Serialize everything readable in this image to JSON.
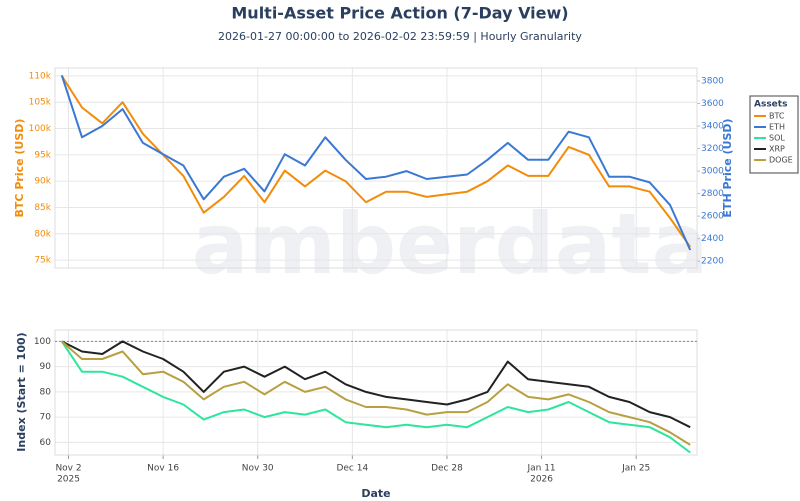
{
  "chart_data": [
    {
      "type": "line",
      "title": "Multi-Asset Price Action (7-Day View)",
      "subtitle": "2026-01-27 00:00:00 to 2026-02-02 23:59:59 | Hourly Granularity",
      "watermark": "amberdata",
      "y_label": "BTC Price (USD)",
      "y2_label": "ETH Price (USD)",
      "legend": "right",
      "legend_title": "Assets",
      "grid": true,
      "xlim": [
        "2025-10-31",
        "2026-02-03"
      ],
      "xticks": [
        "2025-11-02",
        "2025-11-16",
        "2025-11-30",
        "2025-12-14",
        "2025-12-28",
        "2026-01-11",
        "2026-01-25"
      ],
      "ylim": [
        73500,
        111500
      ],
      "yticks": [
        {
          "value": 75000,
          "label": "75k"
        },
        {
          "value": 80000,
          "label": "80k"
        },
        {
          "value": 85000,
          "label": "85k"
        },
        {
          "value": 90000,
          "label": "90k"
        },
        {
          "value": 95000,
          "label": "95k"
        },
        {
          "value": 100000,
          "label": "100k"
        },
        {
          "value": 105000,
          "label": "105k"
        },
        {
          "value": 110000,
          "label": "110k"
        }
      ],
      "y2lim": [
        2140,
        3915
      ],
      "y2ticks": [
        2200,
        2400,
        2600,
        2800,
        3000,
        3200,
        3400,
        3600,
        3800
      ],
      "x": [
        "2025-11-01",
        "2025-11-04",
        "2025-11-07",
        "2025-11-10",
        "2025-11-13",
        "2025-11-16",
        "2025-11-19",
        "2025-11-22",
        "2025-11-25",
        "2025-11-28",
        "2025-12-01",
        "2025-12-04",
        "2025-12-07",
        "2025-12-10",
        "2025-12-13",
        "2025-12-16",
        "2025-12-19",
        "2025-12-22",
        "2025-12-25",
        "2025-12-28",
        "2025-12-31",
        "2026-01-03",
        "2026-01-06",
        "2026-01-09",
        "2026-01-12",
        "2026-01-15",
        "2026-01-18",
        "2026-01-21",
        "2026-01-24",
        "2026-01-27",
        "2026-01-30",
        "2026-02-02"
      ],
      "series": [
        {
          "name": "BTC",
          "color": "#f28c0a",
          "axis": "y",
          "values": [
            110000,
            104000,
            101000,
            105000,
            99000,
            95000,
            91000,
            84000,
            87000,
            91000,
            86000,
            92000,
            89000,
            92000,
            90000,
            86000,
            88000,
            88000,
            87000,
            87500,
            88000,
            90000,
            93000,
            91000,
            91000,
            96500,
            95000,
            89000,
            89000,
            88000,
            83000,
            77500
          ]
        },
        {
          "name": "ETH",
          "color": "#3a78d4",
          "axis": "y2",
          "values": [
            3850,
            3300,
            3400,
            3550,
            3250,
            3150,
            3050,
            2750,
            2950,
            3020,
            2820,
            3150,
            3050,
            3300,
            3100,
            2930,
            2950,
            3000,
            2930,
            2950,
            2970,
            3100,
            3250,
            3100,
            3100,
            3350,
            3300,
            2950,
            2950,
            2900,
            2700,
            2300
          ]
        }
      ]
    },
    {
      "type": "line",
      "x_label": "Date",
      "y_label": "Index (Start = 100)",
      "grid": true,
      "reference_line": 100,
      "xlim": [
        "2025-10-31",
        "2026-02-03"
      ],
      "xticks": [
        {
          "value": "2025-11-02",
          "label": [
            "Nov 2",
            "2025"
          ]
        },
        {
          "value": "2025-11-16",
          "label": [
            "Nov 16"
          ]
        },
        {
          "value": "2025-11-30",
          "label": [
            "Nov 30"
          ]
        },
        {
          "value": "2025-12-14",
          "label": [
            "Dec 14"
          ]
        },
        {
          "value": "2025-12-28",
          "label": [
            "Dec 28"
          ]
        },
        {
          "value": "2026-01-11",
          "label": [
            "Jan 11",
            "2026"
          ]
        },
        {
          "value": "2026-01-25",
          "label": [
            "Jan 25"
          ]
        }
      ],
      "ylim": [
        55,
        104.5
      ],
      "yticks": [
        60,
        70,
        80,
        90,
        100
      ],
      "x": [
        "2025-11-01",
        "2025-11-04",
        "2025-11-07",
        "2025-11-10",
        "2025-11-13",
        "2025-11-16",
        "2025-11-19",
        "2025-11-22",
        "2025-11-25",
        "2025-11-28",
        "2025-12-01",
        "2025-12-04",
        "2025-12-07",
        "2025-12-10",
        "2025-12-13",
        "2025-12-16",
        "2025-12-19",
        "2025-12-22",
        "2025-12-25",
        "2025-12-28",
        "2025-12-31",
        "2026-01-03",
        "2026-01-06",
        "2026-01-09",
        "2026-01-12",
        "2026-01-15",
        "2026-01-18",
        "2026-01-21",
        "2026-01-24",
        "2026-01-27",
        "2026-01-30",
        "2026-02-02"
      ],
      "series": [
        {
          "name": "SOL",
          "color": "#2ee59d",
          "values": [
            100,
            88,
            88,
            86,
            82,
            78,
            75,
            69,
            72,
            73,
            70,
            72,
            71,
            73,
            68,
            67,
            66,
            67,
            66,
            67,
            66,
            70,
            74,
            72,
            73,
            76,
            72,
            68,
            67,
            66,
            62,
            56
          ]
        },
        {
          "name": "XRP",
          "color": "#222222",
          "values": [
            100,
            96,
            95,
            100,
            96,
            93,
            88,
            80,
            88,
            90,
            86,
            90,
            85,
            88,
            83,
            80,
            78,
            77,
            76,
            75,
            77,
            80,
            92,
            85,
            84,
            83,
            82,
            78,
            76,
            72,
            70,
            66
          ]
        },
        {
          "name": "DOGE",
          "color": "#b8a040",
          "values": [
            100,
            93,
            93,
            96,
            87,
            88,
            84,
            77,
            82,
            84,
            79,
            84,
            80,
            82,
            77,
            74,
            74,
            73,
            71,
            72,
            72,
            76,
            83,
            78,
            77,
            79,
            76,
            72,
            70,
            68,
            64,
            59
          ]
        }
      ]
    }
  ]
}
